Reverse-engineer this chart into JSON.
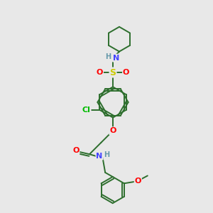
{
  "background_color": "#e8e8e8",
  "bond_color": "#2d6e2d",
  "atom_colors": {
    "N": "#4444ff",
    "O": "#ff0000",
    "S": "#cccc00",
    "Cl": "#00bb00",
    "H": "#6699aa",
    "C": "#2d6e2d"
  }
}
